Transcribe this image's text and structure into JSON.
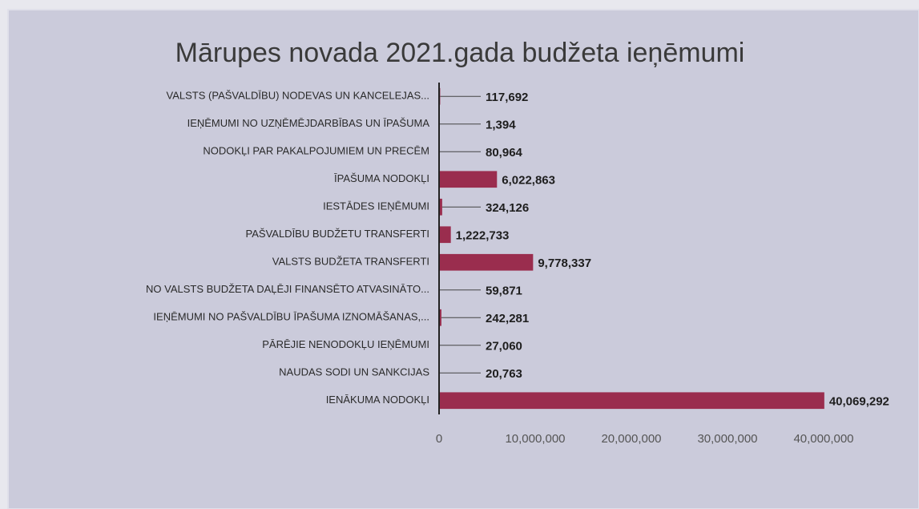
{
  "chart_data": {
    "type": "hbar",
    "title": "Mārupes novada 2021.gada budžeta ieņēmumi",
    "categories": [
      "VALSTS (PAŠVALDĪBU) NODEVAS UN KANCELEJAS...",
      "IEŅĒMUMI NO UZŅĒMĒJDARBĪBAS UN ĪPAŠUMA",
      "NODOKĻI PAR PAKALPOJUMIEM UN PRECĒM",
      "ĪPAŠUMA NODOKĻI",
      "IESTĀDES IEŅĒMUMI",
      "PAŠVALDĪBU BUDŽETU TRANSFERTI",
      "VALSTS BUDŽETA TRANSFERTI",
      "NO VALSTS BUDŽETA DAĻĒJI FINANSĒTO ATVASINĀTO...",
      "IEŅĒMUMI NO PAŠVALDĪBU ĪPAŠUMA IZNOMĀŠANAS,...",
      "PĀRĒJIE NENODOKĻU IEŅĒMUMI",
      "NAUDAS SODI UN SANKCIJAS",
      "IENĀKUMA NODOKĻI"
    ],
    "values": [
      117692,
      1394,
      80964,
      6022863,
      324126,
      1222733,
      9778337,
      59871,
      242281,
      27060,
      20763,
      40069292
    ],
    "value_labels": [
      "117,692",
      "1,394",
      "80,964",
      "6,022,863",
      "324,126",
      "1,222,733",
      "9,778,337",
      "59,871",
      "242,281",
      "27,060",
      "20,763",
      "40,069,292"
    ],
    "color": "#9a2d4e",
    "xlim": [
      0,
      40000000
    ],
    "xticks": [
      0,
      {
        "value": 10000000,
        "label": "10,000,000"
      },
      {
        "value": 20000000,
        "label": "20,000,000"
      },
      {
        "value": 30000000,
        "label": "30,000,000"
      },
      {
        "value": 40000000,
        "label": "40,000,000"
      }
    ]
  }
}
